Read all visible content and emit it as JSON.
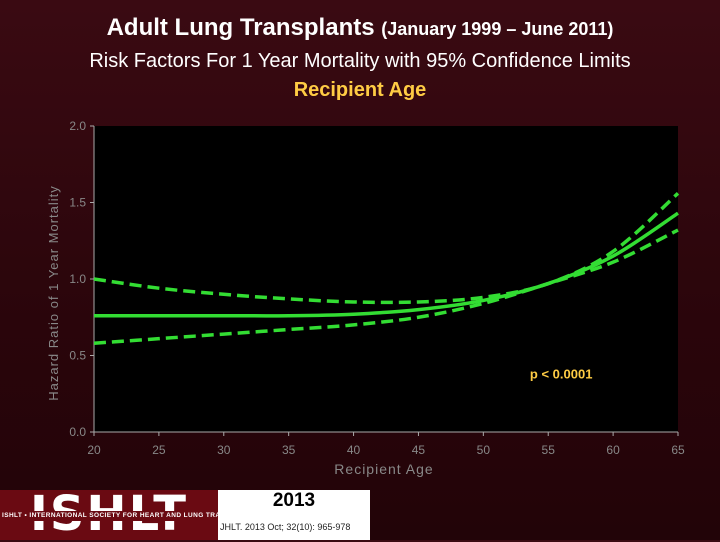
{
  "header": {
    "title_main": "Adult Lung Transplants",
    "title_dates": "(January 1999 – June 2011)",
    "subtitle": "Risk Factors For 1 Year Mortality with 95% Confidence Limits",
    "variable": "Recipient Age"
  },
  "footer": {
    "logo_text": "ISHLT",
    "logo_subtitle": "ISHLT • INTERNATIONAL SOCIETY FOR HEART AND LUNG TRANSPLANTATION",
    "year": "2013",
    "citation": "JHLT. 2013 Oct; 32(10): 965-978"
  },
  "colors": {
    "curve": "#33dd33",
    "plot_bg": "#000000",
    "axis_text": "#888888",
    "annotation": "#ffcc44",
    "page_bg": "#2a050b"
  },
  "chart_data": {
    "type": "line",
    "title": "",
    "xlabel": "Recipient Age",
    "ylabel": "Hazard Ratio of 1 Year Mortality",
    "xlim": [
      20,
      65
    ],
    "ylim": [
      0.0,
      2.0
    ],
    "x_ticks": [
      "20",
      "25",
      "30",
      "35",
      "40",
      "45",
      "50",
      "55",
      "60",
      "65"
    ],
    "y_ticks": [
      "0.0",
      "0.5",
      "1.0",
      "1.5",
      "2.0"
    ],
    "grid": false,
    "annotation": "p < 0.0001",
    "x": [
      20,
      25,
      30,
      35,
      40,
      45,
      50,
      55,
      60,
      65
    ],
    "series": [
      {
        "style": "solid",
        "values": [
          0.76,
          0.76,
          0.76,
          0.76,
          0.77,
          0.8,
          0.86,
          0.97,
          1.15,
          1.43
        ]
      },
      {
        "style": "dashed",
        "values": [
          1.0,
          0.94,
          0.9,
          0.87,
          0.85,
          0.85,
          0.88,
          0.97,
          1.18,
          1.56
        ]
      },
      {
        "style": "dashed",
        "values": [
          0.58,
          0.61,
          0.64,
          0.67,
          0.7,
          0.75,
          0.84,
          0.97,
          1.11,
          1.32
        ]
      }
    ]
  }
}
